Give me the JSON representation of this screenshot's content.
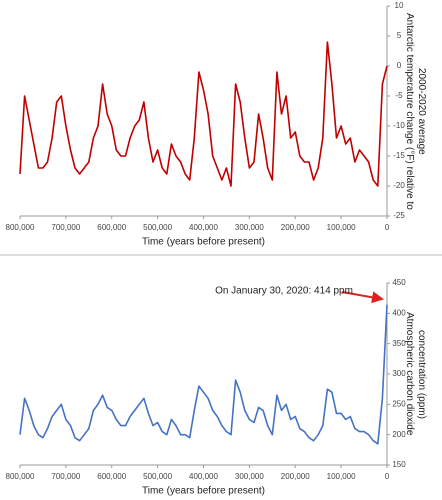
{
  "chart_data": [
    {
      "type": "line",
      "y_label": "Antarctic temperature change (°F) relative to 2000-2020 average",
      "x_label": "Time (years before present)",
      "color": "#c00000",
      "x": [
        800000,
        790000,
        780000,
        770000,
        760000,
        750000,
        740000,
        730000,
        720000,
        710000,
        700000,
        690000,
        680000,
        670000,
        660000,
        650000,
        640000,
        630000,
        620000,
        610000,
        600000,
        590000,
        580000,
        570000,
        560000,
        550000,
        540000,
        530000,
        520000,
        510000,
        500000,
        490000,
        480000,
        470000,
        460000,
        450000,
        440000,
        430000,
        420000,
        410000,
        400000,
        390000,
        380000,
        370000,
        360000,
        350000,
        340000,
        330000,
        320000,
        310000,
        300000,
        290000,
        280000,
        270000,
        260000,
        250000,
        240000,
        230000,
        220000,
        210000,
        200000,
        190000,
        180000,
        170000,
        160000,
        150000,
        140000,
        130000,
        120000,
        110000,
        100000,
        90000,
        80000,
        70000,
        60000,
        50000,
        40000,
        30000,
        20000,
        10000,
        0
      ],
      "values": [
        -18,
        -5,
        -9,
        -13,
        -17,
        -17,
        -16,
        -12,
        -6,
        -5,
        -10,
        -14,
        -17,
        -18,
        -17,
        -16,
        -12,
        -10,
        -3,
        -8,
        -10,
        -14,
        -15,
        -15,
        -12,
        -10,
        -9,
        -6,
        -12,
        -16,
        -14,
        -17,
        -18,
        -13,
        -15,
        -16,
        -18,
        -19,
        -12,
        -1,
        -4,
        -8,
        -15,
        -17,
        -19,
        -17,
        -20,
        -3,
        -6,
        -12,
        -17,
        -16,
        -8,
        -12,
        -17,
        -19,
        -1,
        -8,
        -5,
        -12,
        -11,
        -15,
        -16,
        -16,
        -19,
        -17,
        -12,
        4,
        -3,
        -12,
        -10,
        -13,
        -12,
        -16,
        -14,
        -15,
        -16,
        -19,
        -20,
        -3,
        0
      ],
      "xlim": [
        800000,
        0
      ],
      "xticks": [
        {
          "value": 800000,
          "label": "800,000"
        },
        {
          "value": 700000,
          "label": "700,000"
        },
        {
          "value": 600000,
          "label": "600,000"
        },
        {
          "value": 500000,
          "label": "500,000"
        },
        {
          "value": 400000,
          "label": "400,000"
        },
        {
          "value": 300000,
          "label": "300,000"
        },
        {
          "value": 200000,
          "label": "200,000"
        },
        {
          "value": 100000,
          "label": "100,000"
        },
        0
      ],
      "ylim": [
        -25,
        10
      ],
      "yticks": [
        -25,
        -20,
        -15,
        -10,
        -5,
        0,
        5,
        10
      ]
    },
    {
      "type": "line",
      "y_label": "Atmospheric carbon dioxide concentration (ppm)",
      "x_label": "Time (years before present)",
      "annotation": "On January 30, 2020: 414 ppm",
      "color": "#4472c4",
      "x": [
        800000,
        790000,
        780000,
        770000,
        760000,
        750000,
        740000,
        730000,
        720000,
        710000,
        700000,
        690000,
        680000,
        670000,
        660000,
        650000,
        640000,
        630000,
        620000,
        610000,
        600000,
        590000,
        580000,
        570000,
        560000,
        550000,
        540000,
        530000,
        520000,
        510000,
        500000,
        490000,
        480000,
        470000,
        460000,
        450000,
        440000,
        430000,
        420000,
        410000,
        400000,
        390000,
        380000,
        370000,
        360000,
        350000,
        340000,
        330000,
        320000,
        310000,
        300000,
        290000,
        280000,
        270000,
        260000,
        250000,
        240000,
        230000,
        220000,
        210000,
        200000,
        190000,
        180000,
        170000,
        160000,
        150000,
        140000,
        130000,
        120000,
        110000,
        100000,
        90000,
        80000,
        70000,
        60000,
        50000,
        40000,
        30000,
        20000,
        10000,
        0
      ],
      "values": [
        200,
        260,
        240,
        215,
        200,
        195,
        210,
        230,
        240,
        250,
        225,
        215,
        195,
        190,
        200,
        210,
        240,
        250,
        265,
        245,
        240,
        225,
        215,
        215,
        230,
        240,
        250,
        260,
        235,
        215,
        220,
        205,
        200,
        225,
        215,
        200,
        200,
        195,
        240,
        280,
        270,
        260,
        240,
        230,
        215,
        205,
        200,
        290,
        270,
        240,
        225,
        220,
        245,
        240,
        215,
        200,
        265,
        240,
        250,
        225,
        230,
        210,
        205,
        195,
        190,
        200,
        215,
        275,
        270,
        235,
        235,
        225,
        230,
        210,
        205,
        205,
        200,
        190,
        185,
        260,
        414
      ],
      "xlim": [
        800000,
        0
      ],
      "xticks": [
        {
          "value": 800000,
          "label": "800,000"
        },
        {
          "value": 700000,
          "label": "700,000"
        },
        {
          "value": 600000,
          "label": "600,000"
        },
        {
          "value": 500000,
          "label": "500,000"
        },
        {
          "value": 400000,
          "label": "400,000"
        },
        {
          "value": 300000,
          "label": "300,000"
        },
        {
          "value": 200000,
          "label": "200,000"
        },
        {
          "value": 100000,
          "label": "100,000"
        },
        0
      ],
      "ylim": [
        150,
        450
      ],
      "yticks": [
        150,
        200,
        250,
        300,
        350,
        400,
        450
      ]
    }
  ]
}
